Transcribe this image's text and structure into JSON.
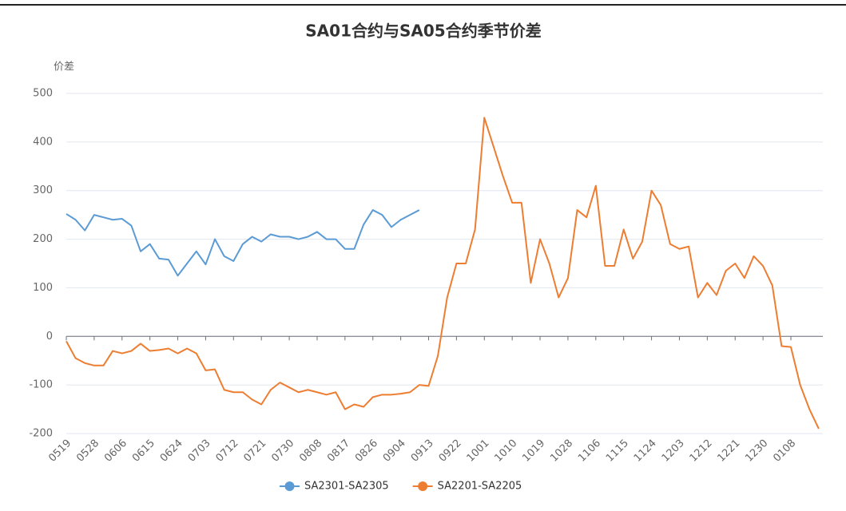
{
  "chart_data": {
    "type": "line",
    "title": "SA01合约与SA05合约季节价差",
    "y_label": "价差",
    "categories": [
      "0519",
      null,
      null,
      "0528",
      null,
      null,
      "0606",
      null,
      null,
      "0615",
      null,
      null,
      "0624",
      null,
      null,
      "0703",
      null,
      null,
      "0712",
      null,
      null,
      "0721",
      null,
      null,
      "0730",
      null,
      null,
      "0808",
      null,
      null,
      "0817",
      null,
      null,
      "0826",
      null,
      null,
      "0904",
      null,
      null,
      "0913",
      null,
      null,
      "0922",
      null,
      null,
      "1001",
      null,
      null,
      "1010",
      null,
      null,
      "1019",
      null,
      null,
      "1028",
      null,
      null,
      "1106",
      null,
      null,
      "1115",
      null,
      null,
      "1124",
      null,
      null,
      "1203",
      null,
      null,
      "1212",
      null,
      null,
      "1221",
      null,
      null,
      "1230",
      null,
      null,
      "0108",
      null,
      null,
      null
    ],
    "series": [
      {
        "name": "SA2301-SA2305",
        "color": "#5b9bd5",
        "values": [
          252,
          240,
          218,
          250,
          245,
          240,
          242,
          228,
          175,
          190,
          160,
          158,
          125,
          150,
          175,
          148,
          200,
          165,
          155,
          190,
          205,
          195,
          210,
          205,
          205,
          200,
          205,
          215,
          200,
          200,
          180,
          180,
          230,
          260,
          250,
          225,
          240,
          250,
          260,
          null,
          null,
          null,
          null,
          null,
          null,
          null,
          null,
          null,
          null,
          null,
          null,
          null,
          null,
          null,
          null,
          null,
          null,
          null,
          null,
          null,
          null,
          null,
          null,
          null,
          null,
          null,
          null,
          null,
          null,
          null,
          null,
          null,
          null,
          null,
          null,
          null,
          null,
          null,
          null,
          null,
          null,
          null
        ]
      },
      {
        "name": "SA2201-SA2205",
        "color": "#ed7d31",
        "values": [
          -10,
          -45,
          -55,
          -60,
          -60,
          -30,
          -35,
          -30,
          -15,
          -30,
          -28,
          -25,
          -35,
          -25,
          -35,
          -70,
          -68,
          -110,
          -115,
          -115,
          -130,
          -140,
          -110,
          -95,
          -105,
          -115,
          -110,
          -115,
          -120,
          -115,
          -150,
          -140,
          -145,
          -125,
          -120,
          -120,
          -118,
          -115,
          -100,
          -102,
          -40,
          80,
          150,
          150,
          220,
          450,
          390,
          330,
          275,
          275,
          110,
          200,
          150,
          80,
          120,
          260,
          245,
          310,
          145,
          145,
          220,
          160,
          195,
          300,
          270,
          190,
          180,
          185,
          80,
          110,
          85,
          135,
          150,
          120,
          165,
          145,
          105,
          -20,
          -22,
          -100,
          -150,
          -190
        ]
      }
    ],
    "ylim": [
      -200,
      500
    ],
    "yticks": [
      -200,
      -100,
      0,
      100,
      200,
      300,
      400,
      500
    ],
    "grid": true
  }
}
